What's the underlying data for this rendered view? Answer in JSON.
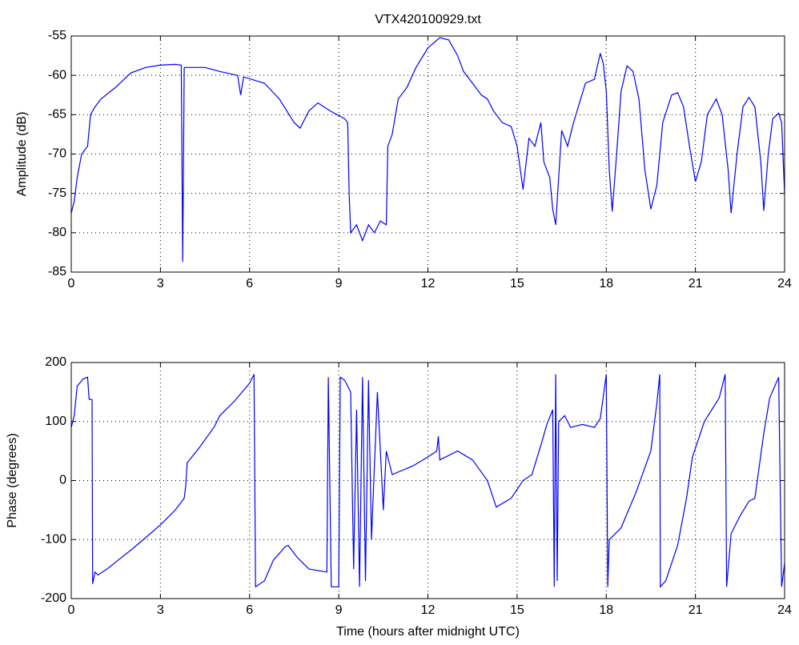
{
  "chart_data": [
    {
      "type": "line",
      "title": "VTX420100929.txt",
      "ylabel": "Amplitude (dB)",
      "color": "#0000ff",
      "grid": true,
      "xlim": [
        0,
        24
      ],
      "xticks": [
        0,
        3,
        6,
        9,
        12,
        15,
        18,
        21,
        24
      ],
      "ylim": [
        -85,
        -55
      ],
      "yticks": [
        -85,
        -80,
        -75,
        -70,
        -65,
        -60,
        -55
      ],
      "x": [
        0,
        0.1,
        0.2,
        0.35,
        0.55,
        0.65,
        0.8,
        1,
        1.5,
        2,
        2.5,
        3,
        3.5,
        3.7,
        3.75,
        3.8,
        4.5,
        5,
        5.6,
        5.7,
        5.8,
        6.5,
        7,
        7.5,
        7.7,
        8,
        8.3,
        8.7,
        9.2,
        9.3,
        9.35,
        9.4,
        9.6,
        9.8,
        10,
        10.2,
        10.4,
        10.6,
        10.65,
        10.8,
        11,
        11.3,
        11.6,
        12,
        12.4,
        12.7,
        13,
        13.2,
        13.5,
        13.8,
        14,
        14.2,
        14.5,
        14.8,
        15,
        15.2,
        15.4,
        15.6,
        15.8,
        15.9,
        16.1,
        16.2,
        16.3,
        16.4,
        16.5,
        16.7,
        16.9,
        17.1,
        17.3,
        17.6,
        17.8,
        17.9,
        18,
        18.1,
        18.2,
        18.35,
        18.5,
        18.7,
        18.9,
        19.1,
        19.3,
        19.5,
        19.7,
        19.9,
        20.2,
        20.4,
        20.6,
        20.8,
        21,
        21.2,
        21.4,
        21.7,
        21.9,
        22.1,
        22.2,
        22.4,
        22.6,
        22.8,
        23,
        23.2,
        23.3,
        23.45,
        23.6,
        23.8,
        23.9,
        24
      ],
      "values": [
        -77.5,
        -76,
        -73,
        -70,
        -69,
        -65,
        -64,
        -63,
        -61.5,
        -59.7,
        -59,
        -58.7,
        -58.6,
        -58.7,
        -83.7,
        -59,
        -59,
        -59.5,
        -60,
        -62.5,
        -60.2,
        -61,
        -63,
        -66,
        -66.7,
        -64.5,
        -63.5,
        -64.5,
        -65.5,
        -66,
        -75,
        -80,
        -79,
        -81,
        -79,
        -80,
        -78.5,
        -79,
        -69,
        -67.5,
        -63,
        -61.5,
        -59,
        -56.5,
        -55.2,
        -55.5,
        -57.5,
        -59.5,
        -61,
        -62.5,
        -63,
        -64.5,
        -66,
        -66.5,
        -69,
        -74.5,
        -68,
        -69,
        -66,
        -71,
        -73,
        -77,
        -79,
        -73,
        -67,
        -69,
        -66,
        -63.5,
        -61,
        -60.5,
        -57.2,
        -58.5,
        -62,
        -72,
        -77.3,
        -70,
        -62,
        -58.8,
        -59.5,
        -63,
        -72,
        -77,
        -74,
        -66,
        -62.5,
        -62.2,
        -64,
        -69,
        -73.5,
        -71,
        -65,
        -63,
        -65,
        -72,
        -77.5,
        -70,
        -64,
        -62.8,
        -64,
        -71,
        -77.2,
        -70,
        -65.5,
        -64.8,
        -66,
        -75
      ]
    },
    {
      "type": "line",
      "xlabel": "Time (hours after midnight UTC)",
      "ylabel": "Phase (degrees)",
      "color": "#0000ff",
      "grid": true,
      "xlim": [
        0,
        24
      ],
      "xticks": [
        0,
        3,
        6,
        9,
        12,
        15,
        18,
        21,
        24
      ],
      "ylim": [
        -200,
        200
      ],
      "yticks": [
        -200,
        -100,
        0,
        100,
        200
      ],
      "x": [
        0,
        0.1,
        0.2,
        0.4,
        0.55,
        0.6,
        0.7,
        0.72,
        0.8,
        0.9,
        1.2,
        1.5,
        2,
        2.5,
        3,
        3.5,
        3.8,
        3.85,
        3.9,
        4.3,
        4.8,
        5,
        5.5,
        6,
        6.15,
        6.2,
        6.5,
        6.8,
        7.2,
        7.3,
        7.6,
        8,
        8.6,
        8.65,
        8.75,
        9.0,
        9.05,
        9.2,
        9.4,
        9.5,
        9.6,
        9.7,
        9.8,
        9.9,
        10,
        10.1,
        10.3,
        10.5,
        10.6,
        10.8,
        11.5,
        12,
        12.3,
        12.35,
        12.4,
        13,
        13.5,
        14,
        14.3,
        14.8,
        15.2,
        15.5,
        15.8,
        16,
        16.2,
        16.25,
        16.3,
        16.35,
        16.4,
        16.6,
        16.8,
        17.2,
        17.6,
        17.8,
        18,
        18.05,
        18.1,
        18.5,
        19,
        19.5,
        19.7,
        19.8,
        19.82,
        20,
        20.4,
        20.7,
        20.9,
        21.3,
        21.8,
        22,
        22.05,
        22.2,
        22.5,
        22.8,
        23,
        23.3,
        23.5,
        23.8,
        23.9,
        24
      ],
      "values": [
        90,
        110,
        160,
        172,
        175,
        138,
        137,
        -175,
        -155,
        -160,
        -150,
        -138,
        -118,
        -97,
        -75,
        -50,
        -30,
        -10,
        30,
        55,
        90,
        110,
        135,
        165,
        180,
        -180,
        -170,
        -135,
        -112,
        -110,
        -130,
        -150,
        -155,
        175,
        -180,
        -180,
        175,
        170,
        150,
        -150,
        120,
        -180,
        175,
        -170,
        170,
        -100,
        150,
        -50,
        50,
        10,
        25,
        40,
        50,
        75,
        35,
        50,
        35,
        0,
        -45,
        -30,
        0,
        10,
        60,
        95,
        120,
        -180,
        180,
        -170,
        100,
        110,
        90,
        95,
        90,
        105,
        180,
        -180,
        -100,
        -80,
        -20,
        50,
        130,
        180,
        -180,
        -170,
        -110,
        -30,
        40,
        100,
        140,
        180,
        -180,
        -90,
        -60,
        -35,
        -30,
        80,
        140,
        175,
        -180,
        -140
      ]
    }
  ]
}
